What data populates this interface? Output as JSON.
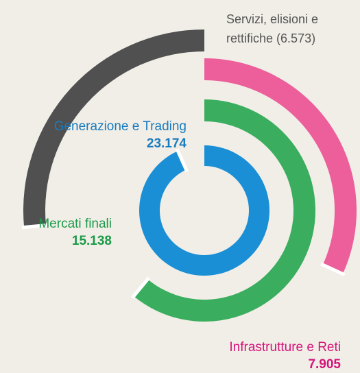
{
  "chart_data": {
    "type": "radial-bar",
    "categories": [
      "Generazione e Trading",
      "Mercati finali",
      "Infrastrutture e Reti",
      "Servizi, elisioni e rettifiche"
    ],
    "values": [
      23174,
      15138,
      7905,
      -6573
    ],
    "value_labels": [
      "23.174",
      "15.138",
      "7.905",
      "(6.573)"
    ],
    "colors": [
      "#1a8fd6",
      "#3aae5e",
      "#ec5f9b",
      "#505050"
    ],
    "label_colors": [
      "#1a7cc0",
      "#1a9a48",
      "#d4137a",
      "#555555"
    ]
  }
}
